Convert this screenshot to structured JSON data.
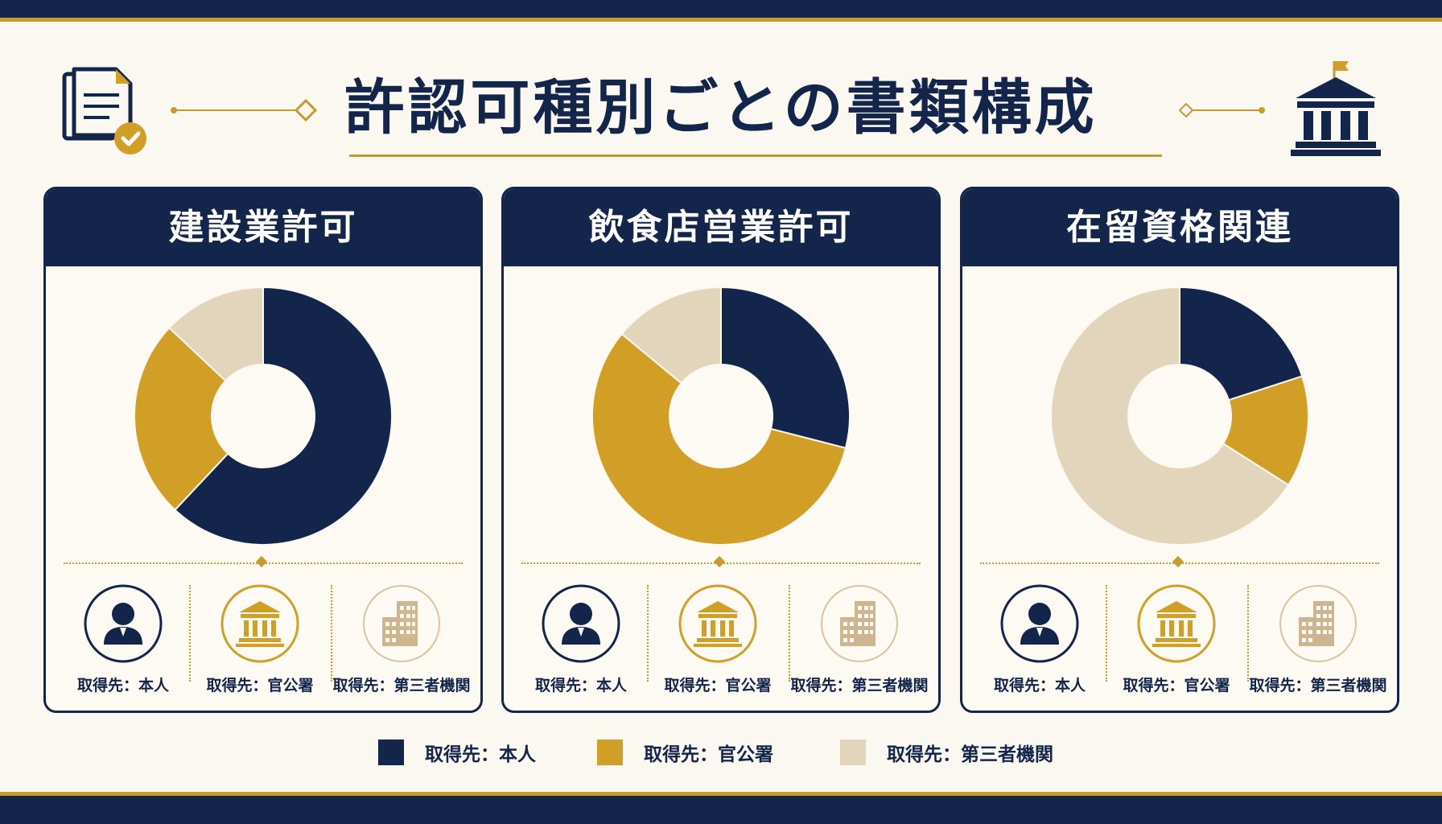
{
  "title": "許認可種別ごとの書類構成",
  "colors": {
    "navy": "#13254a",
    "gold": "#d29f26",
    "beige": "#e3d5bb"
  },
  "header_icons": {
    "left": "document-check-icon",
    "right": "government-building-icon"
  },
  "source_icons": [
    "person-icon",
    "government-building-icon",
    "office-building-icon"
  ],
  "legend": [
    {
      "label": "取得先：本人",
      "color": "#13254a"
    },
    {
      "label": "取得先：官公署",
      "color": "#d29f26"
    },
    {
      "label": "取得先：第三者機関",
      "color": "#e3d5bb"
    }
  ],
  "chart_data": [
    {
      "type": "pie",
      "title": "建設業許可",
      "categories": [
        "取得先：本人",
        "取得先：官公署",
        "取得先：第三者機関"
      ],
      "values": [
        62,
        25,
        13
      ],
      "labels": [
        "取得先：本人",
        "取得先：官公署",
        "取得先：第三者機関"
      ]
    },
    {
      "type": "pie",
      "title": "飲食店営業許可",
      "categories": [
        "取得先：本人",
        "取得先：官公署",
        "取得先：第三者機関"
      ],
      "values": [
        29,
        57,
        14
      ],
      "labels": [
        "取得先：本人",
        "取得先：官公署",
        "取得先：第三者機関"
      ]
    },
    {
      "type": "pie",
      "title": "在留資格関連",
      "categories": [
        "取得先：本人",
        "取得先：官公署",
        "取得先：第三者機関"
      ],
      "values": [
        20,
        14,
        66
      ],
      "labels": [
        "取得先：本人",
        "取得先：官公署",
        "取得先：第三者機関"
      ]
    }
  ]
}
